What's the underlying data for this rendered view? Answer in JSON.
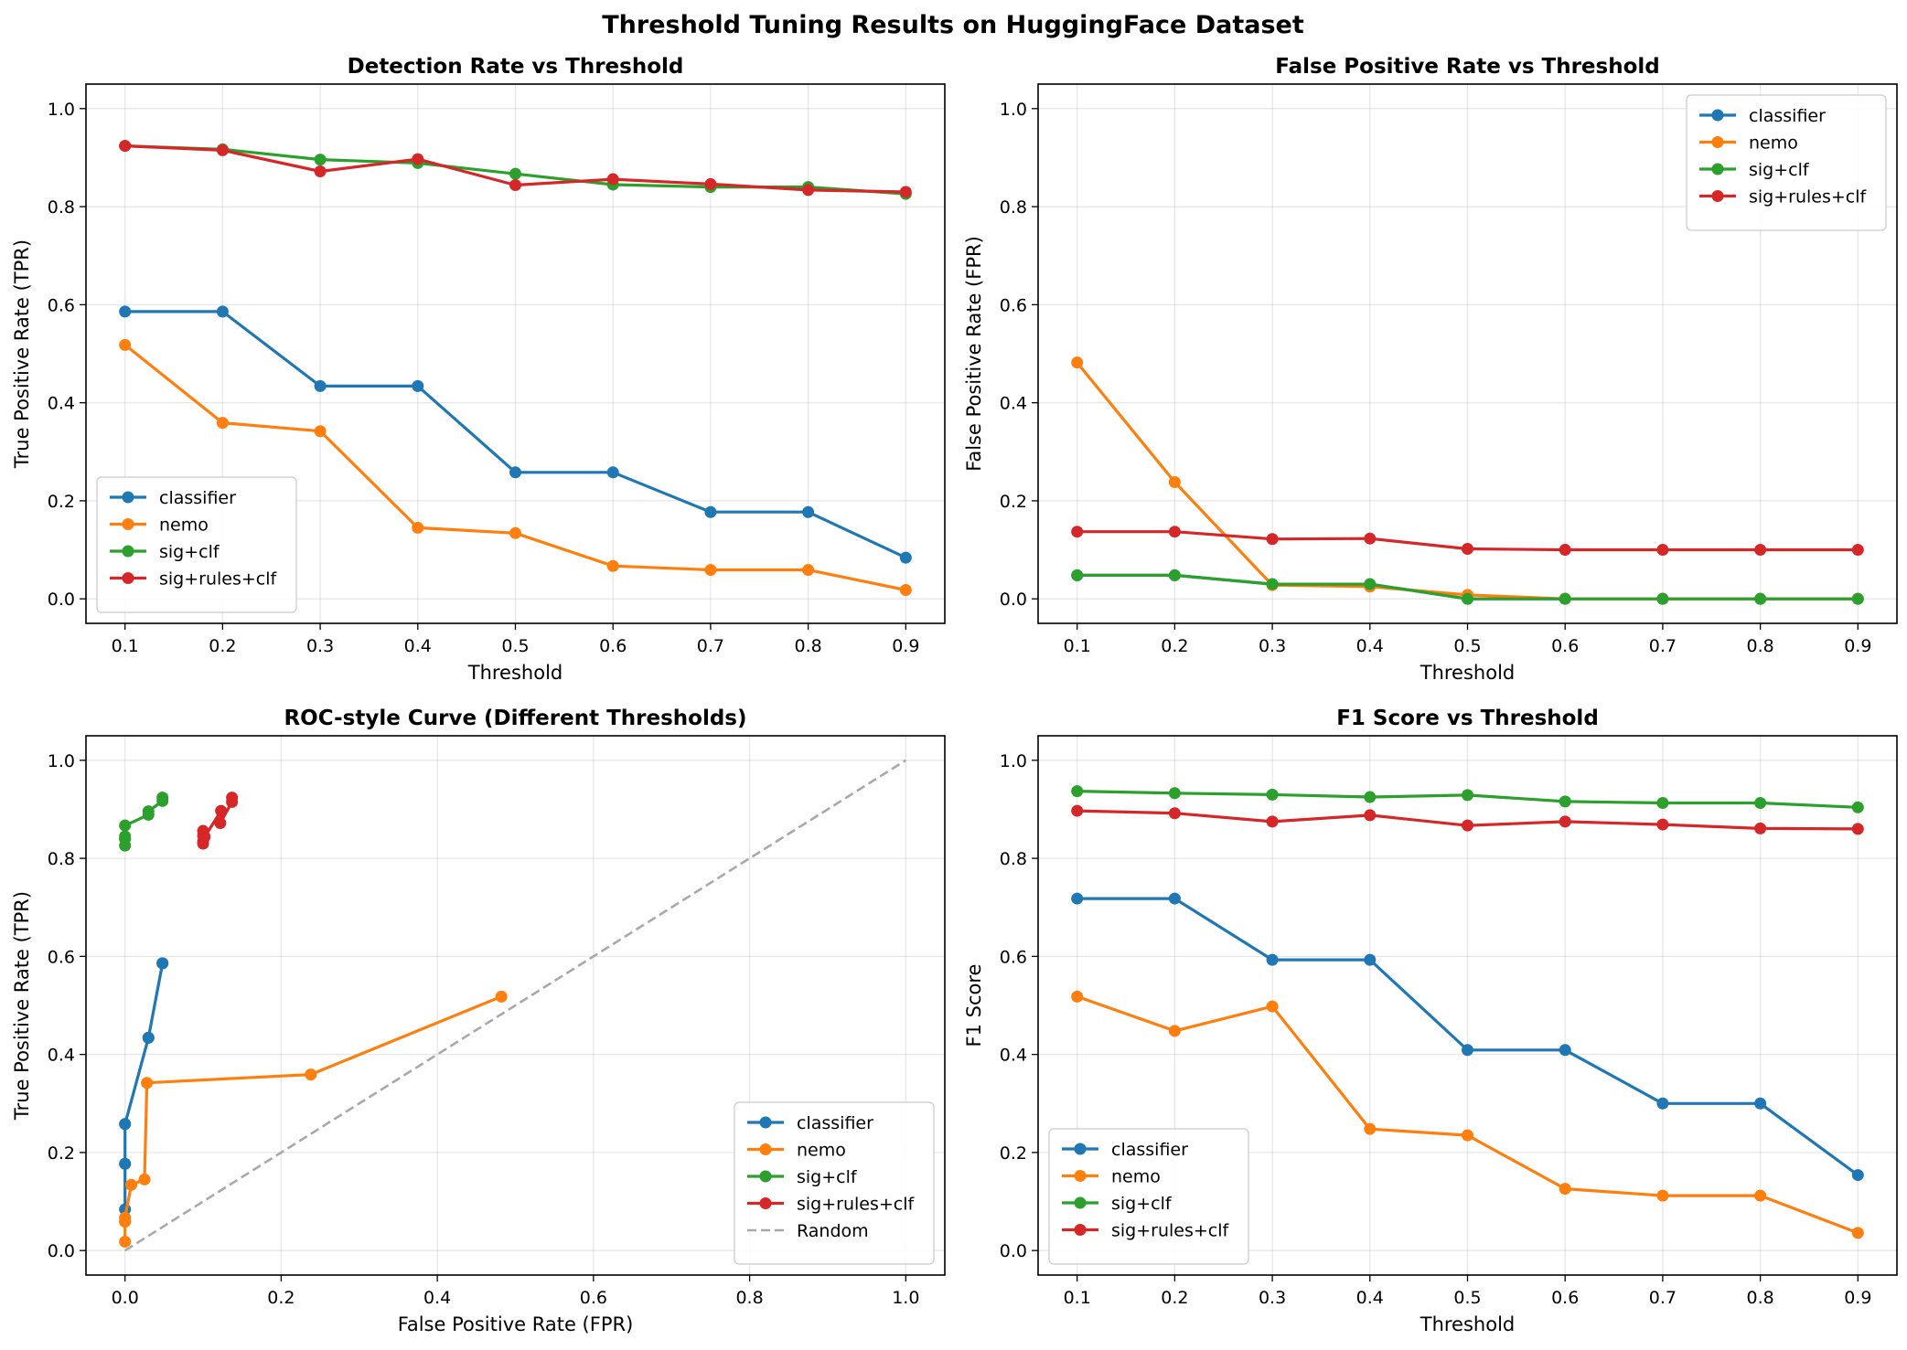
{
  "figure": {
    "suptitle": "Threshold Tuning Results on HuggingFace Dataset"
  },
  "chart_data": [
    {
      "type": "line",
      "title": "Detection Rate vs Threshold",
      "xlabel": "Threshold",
      "ylabel": "True Positive Rate (TPR)",
      "xlim": [
        0.06,
        0.94
      ],
      "ylim": [
        -0.05,
        1.05
      ],
      "xticks": [
        "0.1",
        "0.2",
        "0.3",
        "0.4",
        "0.5",
        "0.6",
        "0.7",
        "0.8",
        "0.9"
      ],
      "yticks": [
        "0.0",
        "0.2",
        "0.4",
        "0.6",
        "0.8",
        "1.0"
      ],
      "grid": true,
      "legend": "lower-left",
      "x": [
        0.1,
        0.2,
        0.3,
        0.4,
        0.5,
        0.6,
        0.7,
        0.8,
        0.9
      ],
      "series": [
        {
          "name": "classifier",
          "color": "#1f77b4",
          "values": [
            0.586,
            0.586,
            0.434,
            0.434,
            0.258,
            0.258,
            0.177,
            0.177,
            0.084
          ]
        },
        {
          "name": "nemo",
          "color": "#ff7f0e",
          "values": [
            0.518,
            0.359,
            0.342,
            0.145,
            0.134,
            0.067,
            0.059,
            0.059,
            0.018
          ]
        },
        {
          "name": "sig+clf",
          "color": "#2ca02c",
          "values": [
            0.924,
            0.917,
            0.896,
            0.889,
            0.867,
            0.845,
            0.84,
            0.84,
            0.826
          ]
        },
        {
          "name": "sig+rules+clf",
          "color": "#d62728",
          "values": [
            0.924,
            0.915,
            0.872,
            0.897,
            0.844,
            0.856,
            0.846,
            0.834,
            0.83
          ]
        }
      ]
    },
    {
      "type": "line",
      "title": "False Positive Rate vs Threshold",
      "xlabel": "Threshold",
      "ylabel": "False Positive Rate (FPR)",
      "xlim": [
        0.06,
        0.94
      ],
      "ylim": [
        -0.05,
        1.05
      ],
      "xticks": [
        "0.1",
        "0.2",
        "0.3",
        "0.4",
        "0.5",
        "0.6",
        "0.7",
        "0.8",
        "0.9"
      ],
      "yticks": [
        "0.0",
        "0.2",
        "0.4",
        "0.6",
        "0.8",
        "1.0"
      ],
      "grid": true,
      "legend": "upper-right",
      "x": [
        0.1,
        0.2,
        0.3,
        0.4,
        0.5,
        0.6,
        0.7,
        0.8,
        0.9
      ],
      "series": [
        {
          "name": "classifier",
          "color": "#1f77b4",
          "values": [
            0.048,
            0.048,
            0.03,
            0.03,
            0.0,
            0.0,
            0.0,
            0.0,
            0.0
          ]
        },
        {
          "name": "nemo",
          "color": "#ff7f0e",
          "values": [
            0.482,
            0.238,
            0.028,
            0.025,
            0.008,
            0.0,
            0.0,
            0.0,
            0.0
          ]
        },
        {
          "name": "sig+clf",
          "color": "#2ca02c",
          "values": [
            0.048,
            0.048,
            0.03,
            0.03,
            0.0,
            0.0,
            0.0,
            0.0,
            0.0
          ]
        },
        {
          "name": "sig+rules+clf",
          "color": "#d62728",
          "values": [
            0.137,
            0.137,
            0.122,
            0.123,
            0.102,
            0.1,
            0.1,
            0.1,
            0.1
          ]
        }
      ]
    },
    {
      "type": "scatter",
      "title": "ROC-style Curve (Different Thresholds)",
      "xlabel": "False Positive Rate (FPR)",
      "ylabel": "True Positive Rate (TPR)",
      "xlim": [
        -0.05,
        1.05
      ],
      "ylim": [
        -0.05,
        1.05
      ],
      "xticks": [
        "0.0",
        "0.2",
        "0.4",
        "0.6",
        "0.8",
        "1.0"
      ],
      "yticks": [
        "0.0",
        "0.2",
        "0.4",
        "0.6",
        "0.8",
        "1.0"
      ],
      "grid": true,
      "legend": "lower-right",
      "series": [
        {
          "name": "classifier",
          "color": "#1f77b4",
          "x": [
            0.048,
            0.048,
            0.03,
            0.03,
            0.0,
            0.0,
            0.0,
            0.0,
            0.0
          ],
          "y": [
            0.586,
            0.586,
            0.434,
            0.434,
            0.258,
            0.258,
            0.177,
            0.177,
            0.084
          ]
        },
        {
          "name": "nemo",
          "color": "#ff7f0e",
          "x": [
            0.482,
            0.238,
            0.028,
            0.025,
            0.008,
            0.0,
            0.0,
            0.0,
            0.0
          ],
          "y": [
            0.518,
            0.359,
            0.342,
            0.145,
            0.134,
            0.067,
            0.059,
            0.059,
            0.018
          ]
        },
        {
          "name": "sig+clf",
          "color": "#2ca02c",
          "x": [
            0.048,
            0.048,
            0.03,
            0.03,
            0.0,
            0.0,
            0.0,
            0.0,
            0.0
          ],
          "y": [
            0.924,
            0.917,
            0.896,
            0.889,
            0.867,
            0.845,
            0.84,
            0.84,
            0.826
          ]
        },
        {
          "name": "sig+rules+clf",
          "color": "#d62728",
          "x": [
            0.137,
            0.137,
            0.122,
            0.123,
            0.102,
            0.1,
            0.1,
            0.1,
            0.1
          ],
          "y": [
            0.924,
            0.915,
            0.872,
            0.897,
            0.844,
            0.856,
            0.846,
            0.834,
            0.83
          ]
        },
        {
          "name": "Random",
          "color": "#a9a9a9",
          "dashed": true,
          "x": [
            0,
            1
          ],
          "y": [
            0,
            1
          ]
        }
      ]
    },
    {
      "type": "line",
      "title": "F1 Score vs Threshold",
      "xlabel": "Threshold",
      "ylabel": "F1 Score",
      "xlim": [
        0.06,
        0.94
      ],
      "ylim": [
        -0.05,
        1.05
      ],
      "xticks": [
        "0.1",
        "0.2",
        "0.3",
        "0.4",
        "0.5",
        "0.6",
        "0.7",
        "0.8",
        "0.9"
      ],
      "yticks": [
        "0.0",
        "0.2",
        "0.4",
        "0.6",
        "0.8",
        "1.0"
      ],
      "grid": true,
      "legend": "lower-left",
      "x": [
        0.1,
        0.2,
        0.3,
        0.4,
        0.5,
        0.6,
        0.7,
        0.8,
        0.9
      ],
      "series": [
        {
          "name": "classifier",
          "color": "#1f77b4",
          "values": [
            0.718,
            0.718,
            0.593,
            0.593,
            0.409,
            0.409,
            0.3,
            0.3,
            0.154
          ]
        },
        {
          "name": "nemo",
          "color": "#ff7f0e",
          "values": [
            0.518,
            0.448,
            0.498,
            0.248,
            0.235,
            0.126,
            0.112,
            0.112,
            0.036
          ]
        },
        {
          "name": "sig+clf",
          "color": "#2ca02c",
          "values": [
            0.937,
            0.933,
            0.93,
            0.925,
            0.929,
            0.916,
            0.913,
            0.913,
            0.904
          ]
        },
        {
          "name": "sig+rules+clf",
          "color": "#d62728",
          "values": [
            0.897,
            0.892,
            0.875,
            0.888,
            0.867,
            0.875,
            0.869,
            0.861,
            0.86
          ]
        }
      ]
    }
  ]
}
